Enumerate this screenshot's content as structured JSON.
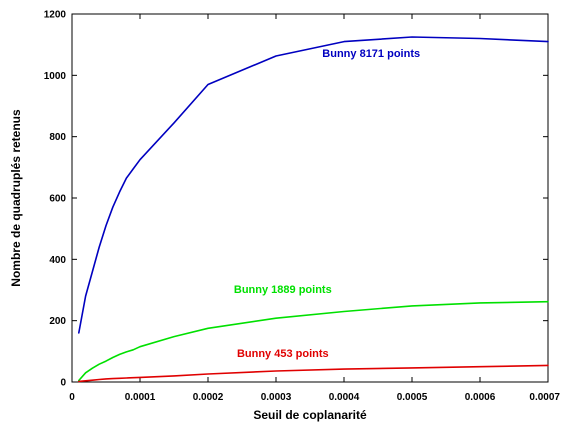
{
  "chart_data": {
    "type": "line",
    "title": "",
    "xlabel": "Seuil de coplanarité",
    "ylabel": "Nombre de quadruplés retenus",
    "xlim": [
      0,
      0.0007
    ],
    "ylim": [
      0,
      1200
    ],
    "x_ticks": [
      "0",
      "0.0001",
      "0.0002",
      "0.0003",
      "0.0004",
      "0.0005",
      "0.0006",
      "0.0007"
    ],
    "y_ticks": [
      "0",
      "200",
      "400",
      "600",
      "800",
      "1000",
      "1200"
    ],
    "x_tick_values": [
      0,
      0.0001,
      0.0002,
      0.0003,
      0.0004,
      0.0005,
      0.0006,
      0.0007
    ],
    "y_tick_values": [
      0,
      200,
      400,
      600,
      800,
      1000,
      1200
    ],
    "grid": false,
    "legend": "none",
    "series": [
      {
        "name": "Bunny 8171 points",
        "color": "#0000c0",
        "x": [
          1e-05,
          2e-05,
          3e-05,
          4e-05,
          5e-05,
          6e-05,
          7e-05,
          8e-05,
          9e-05,
          0.0001,
          0.00015,
          0.0002,
          0.0003,
          0.0004,
          0.0005,
          0.0006,
          0.0007
        ],
        "y": [
          160,
          280,
          360,
          440,
          510,
          570,
          620,
          665,
          695,
          725,
          845,
          970,
          1063,
          1110,
          1125,
          1120,
          1110
        ]
      },
      {
        "name": "Bunny 1889 points",
        "color": "#00e000",
        "x": [
          1e-05,
          2e-05,
          3e-05,
          4e-05,
          5e-05,
          6e-05,
          7e-05,
          8e-05,
          9e-05,
          0.0001,
          0.00015,
          0.0002,
          0.0003,
          0.0004,
          0.0005,
          0.0006,
          0.0007
        ],
        "y": [
          5,
          30,
          45,
          58,
          68,
          80,
          90,
          98,
          105,
          115,
          148,
          175,
          208,
          230,
          248,
          258,
          262
        ]
      },
      {
        "name": "Bunny 453 points",
        "color": "#e00000",
        "x": [
          1e-05,
          2e-05,
          3e-05,
          4e-05,
          5e-05,
          6e-05,
          7e-05,
          8e-05,
          9e-05,
          0.0001,
          0.00015,
          0.0002,
          0.0003,
          0.0004,
          0.0005,
          0.0006,
          0.0007
        ],
        "y": [
          2,
          4,
          6,
          8,
          10,
          11,
          12,
          13,
          14,
          15,
          20,
          26,
          36,
          42,
          46,
          50,
          54
        ]
      }
    ],
    "annotations": [
      {
        "text": "Bunny 8171 points",
        "series": 0,
        "x": 0.00044,
        "y": 1060
      },
      {
        "text": "Bunny 1889 points",
        "series": 1,
        "x": 0.00031,
        "y": 290
      },
      {
        "text": "Bunny 453 points",
        "series": 2,
        "x": 0.00031,
        "y": 82
      }
    ]
  }
}
